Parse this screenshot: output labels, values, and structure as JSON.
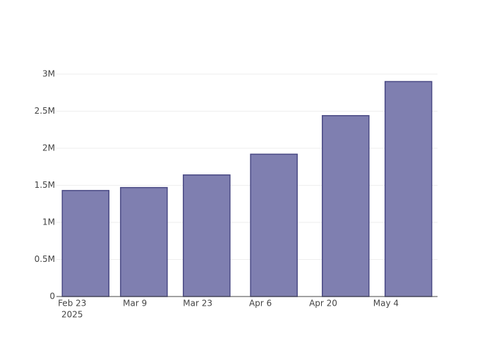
{
  "chart_data": {
    "type": "bar",
    "x": [
      "2025-02-26",
      "2025-03-11",
      "2025-03-25",
      "2025-04-09",
      "2025-04-25",
      "2025-05-09"
    ],
    "values": [
      1430000,
      1470000,
      1640000,
      1920000,
      2440000,
      2900000
    ],
    "color": "#7f7fb0",
    "edge_color": "#4a4a85",
    "xlim": [
      "2025-02-19T12:00:00Z",
      "2025-05-15T12:00:00Z"
    ],
    "xticks": [
      {
        "value": "2025-02-23",
        "label": "Feb 23"
      },
      {
        "value": "2025-03-09",
        "label": "Mar 9"
      },
      {
        "value": "2025-03-23",
        "label": "Mar 23"
      },
      {
        "value": "2025-04-06",
        "label": "Apr 6"
      },
      {
        "value": "2025-04-20",
        "label": "Apr 20"
      },
      {
        "value": "2025-05-04",
        "label": "May 4"
      }
    ],
    "x_year_label": "2025",
    "ylim": [
      0,
      3000000
    ],
    "yticks": [
      0,
      {
        "value": 500000,
        "label": "0.5M"
      },
      {
        "value": 1000000,
        "label": "1M"
      },
      {
        "value": 1500000,
        "label": "1.5M"
      },
      {
        "value": 2000000,
        "label": "2M"
      },
      {
        "value": 2500000,
        "label": "2.5M"
      },
      {
        "value": 3000000,
        "label": "3M"
      }
    ],
    "grid": true
  }
}
